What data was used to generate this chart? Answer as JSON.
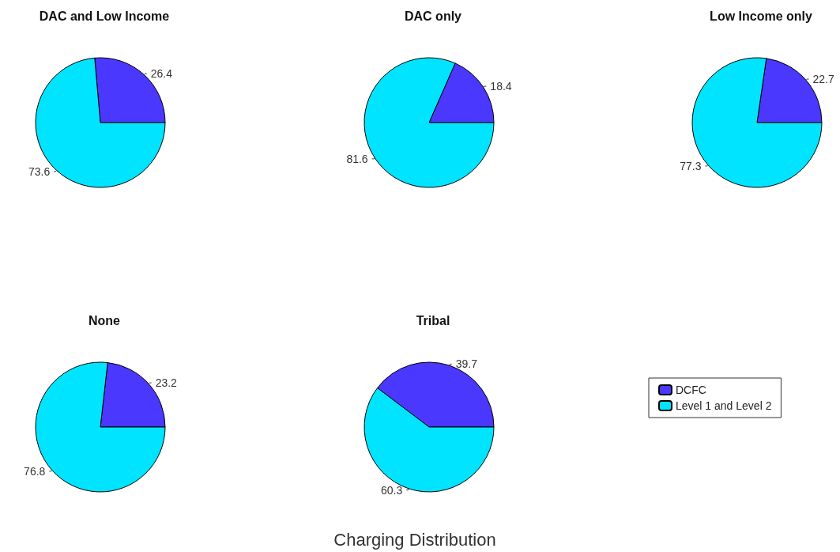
{
  "chart_data": {
    "type": "pie",
    "title": "Charging Distribution",
    "categories": [
      "DCFC",
      "Level 1 and Level 2"
    ],
    "colors": [
      "#4b38ff",
      "#00e4ff"
    ],
    "data_labels": true,
    "legend": "bottom right",
    "series": [
      {
        "name": "DAC and Low Income",
        "values": [
          26.4,
          73.6
        ]
      },
      {
        "name": "DAC only",
        "values": [
          18.4,
          81.6
        ]
      },
      {
        "name": "Low Income only",
        "values": [
          22.7,
          77.3
        ]
      },
      {
        "name": "None",
        "values": [
          23.2,
          76.8
        ]
      },
      {
        "name": "Tribal",
        "values": [
          39.7,
          60.3
        ]
      }
    ]
  }
}
